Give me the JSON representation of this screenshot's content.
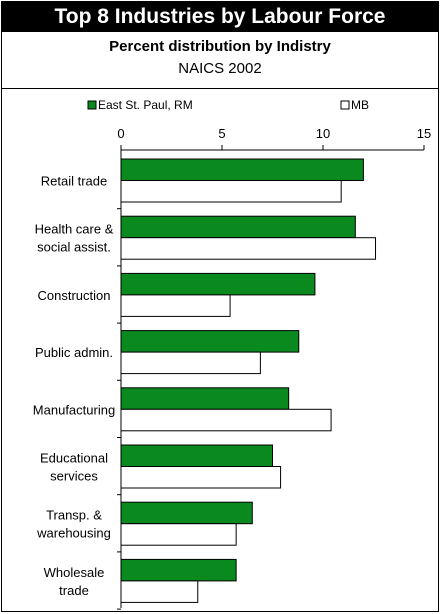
{
  "title": "Top 8 Industries by Labour Force",
  "subtitle": "Percent distribution by Indistry",
  "subtitle2": "NAICS 2002",
  "colors": {
    "series1": "#0a8a1e",
    "series2": "#ffffff",
    "stroke": "#000000"
  },
  "chart_data": {
    "type": "bar",
    "orientation": "horizontal",
    "categories": [
      "Retail trade",
      "Health care &\nsocial assist.",
      "Construction",
      "Public admin.",
      "Manufacturing",
      "Educational\nservices",
      "Transp. &\nwarehousing",
      "Wholesale\ntrade"
    ],
    "series": [
      {
        "name": "East St. Paul, RM",
        "values": [
          12.0,
          11.6,
          9.6,
          8.8,
          8.3,
          7.5,
          6.5,
          5.7
        ]
      },
      {
        "name": "MB",
        "values": [
          10.9,
          12.6,
          5.4,
          6.9,
          10.4,
          7.9,
          5.7,
          3.8
        ]
      }
    ],
    "xlim": [
      0,
      15
    ],
    "xticks": [
      0,
      5,
      10,
      15
    ],
    "legend": "top",
    "grid": false
  }
}
